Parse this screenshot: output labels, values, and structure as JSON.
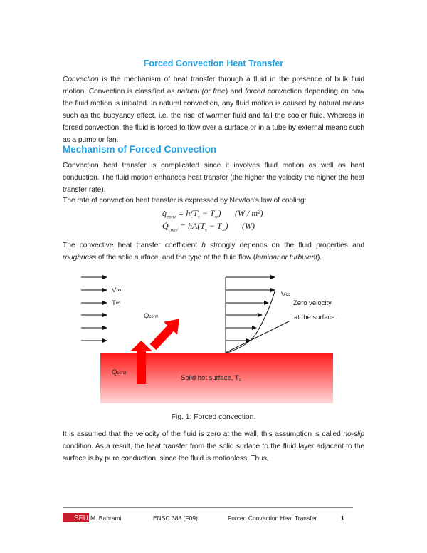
{
  "title": "Forced Convection Heat Transfer",
  "section_heading": "Mechanism of Forced Convection",
  "paragraphs": [
    [
      {
        "t": "Convection",
        "i": true
      },
      {
        "t": " is the mechanism of heat transfer through a fluid in the presence of bulk fluid motion. Convection is classified as "
      },
      {
        "t": "natural (or free",
        "i": true
      },
      {
        "t": ") and "
      },
      {
        "t": "forced",
        "i": true
      },
      {
        "t": " convection depending on how the fluid motion is initiated. In natural convection, any fluid motion is caused by natural means such as the buoyancy effect, i.e. the rise of warmer fluid and fall the cooler fluid. Whereas in forced convection, the fluid is forced to flow over a surface or in a tube by external means such as a pump or fan."
      }
    ],
    [
      {
        "t": "Convection heat transfer is complicated since it involves fluid motion as well as heat conduction. The fluid motion enhances heat transfer (the higher the velocity the higher the heat transfer rate)."
      }
    ],
    [
      {
        "t": "The rate of convection heat transfer is expressed by Newton’s law of cooling:"
      }
    ],
    [
      {
        "t": "The convective heat transfer coefficient "
      },
      {
        "t": "h",
        "i": true
      },
      {
        "t": " strongly depends on the fluid properties and "
      },
      {
        "t": "roughness",
        "i": true
      },
      {
        "t": " of the solid surface, and the type of the fluid flow ("
      },
      {
        "t": "laminar or turbulent",
        "i": true
      },
      {
        "t": ")."
      }
    ],
    [
      {
        "t": "It is assumed that the velocity of the fluid is zero at the wall, this assumption is called "
      },
      {
        "t": "no-slip",
        "i": true
      },
      {
        "t": " condition. As a result, the heat transfer from the solid surface to the fluid layer adjacent to the surface is by pure conduction, since the fluid is motionless. Thus,"
      }
    ]
  ],
  "equations": [
    {
      "sym": "q̇",
      "sub": "conv",
      "rhs": " = h(T",
      "s": "s",
      "mid": " − T",
      "inf": "∞",
      "end": ")",
      "unit": "(W / m²)"
    },
    {
      "sym": "Q̇",
      "sub": "conv",
      "rhs": " = hA(T",
      "s": "s",
      "mid": " − T",
      "inf": "∞",
      "end": ")",
      "unit": "(W)"
    }
  ],
  "figure": {
    "v_inf_left": "V∞",
    "t_inf": "T∞",
    "q_conv": "Q",
    "q_conv_sub": "conv",
    "q_cond": "Q",
    "q_cond_sub": "cond",
    "surface_label": "Solid hot surface, T",
    "surface_sub": "s",
    "v_inf_right": "V∞",
    "zero_velocity_1": "Zero velocity",
    "zero_velocity_2": "at the surface.",
    "caption": "Fig. 1: Forced convection.",
    "colors": {
      "surface_top": "#ff1a1a",
      "surface_bottom": "#ffd9d9",
      "arrow": "#ff0000"
    }
  },
  "footer": {
    "logo": "SFU",
    "author": "M. Bahrami",
    "course": "ENSC 388 (F09)",
    "topic": "Forced Convection Heat Transfer",
    "page": "1"
  },
  "colors": {
    "heading": "#1ea0e6",
    "logo": "#c41e2c"
  }
}
